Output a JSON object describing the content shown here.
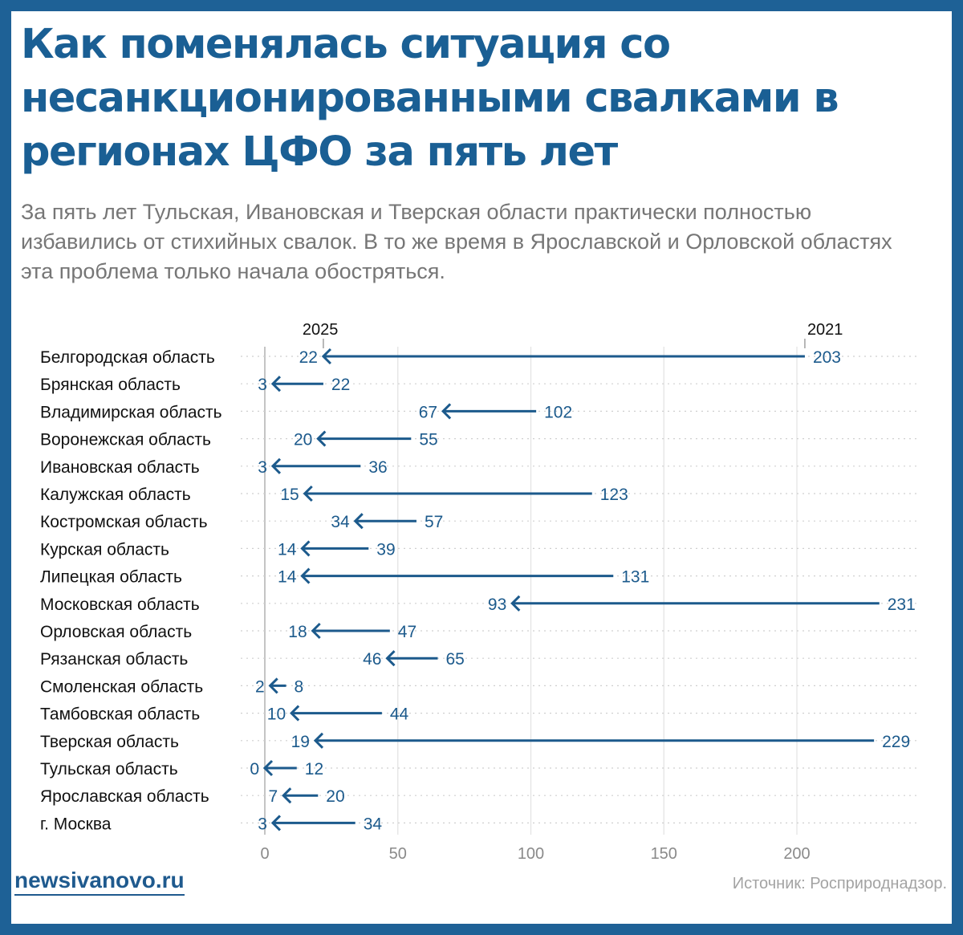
{
  "title": "Как поменялась ситуация со несанкционированными свалками в регионах ЦФО за пять лет",
  "subtitle": "За пять лет Тульская, Ивановская и Тверская области практически полностью избавились от стихийных свалок. В то же время в Ярославской и Орловской областях эта проблема только начала обостряться.",
  "footer": {
    "logo": "newsivanovo.ru",
    "source": "Источник: Росприроднадзор."
  },
  "colors": {
    "background_frame": "#1e6196",
    "title": "#1a5f94",
    "arrow": "#1c5a8c",
    "value_label": "#1c5a8c"
  },
  "chart_data": {
    "type": "arrow",
    "title": "",
    "xlabel": "",
    "ylabel": "",
    "xlim": [
      0,
      235
    ],
    "xticks": [
      0,
      50,
      100,
      150,
      200
    ],
    "grid": true,
    "series_labels": {
      "start": "2021",
      "end": "2025"
    },
    "categories": [
      "Белгородская область",
      "Брянская область",
      "Владимирская область",
      "Воронежская область",
      "Ивановская область",
      "Калужская область",
      "Костромская область",
      "Курская область",
      "Липецкая область",
      "Московская область",
      "Орловская область",
      "Рязанская область",
      "Смоленская область",
      "Тамбовская область",
      "Тверская область",
      "Тульская область",
      "Ярославская область",
      "г. Москва"
    ],
    "series": [
      {
        "name": "2021",
        "values": [
          203,
          22,
          102,
          55,
          36,
          123,
          57,
          39,
          131,
          231,
          47,
          65,
          8,
          44,
          229,
          12,
          20,
          34
        ]
      },
      {
        "name": "2025",
        "values": [
          22,
          3,
          67,
          20,
          3,
          15,
          34,
          14,
          14,
          93,
          18,
          46,
          2,
          10,
          19,
          0,
          7,
          3
        ]
      }
    ]
  }
}
